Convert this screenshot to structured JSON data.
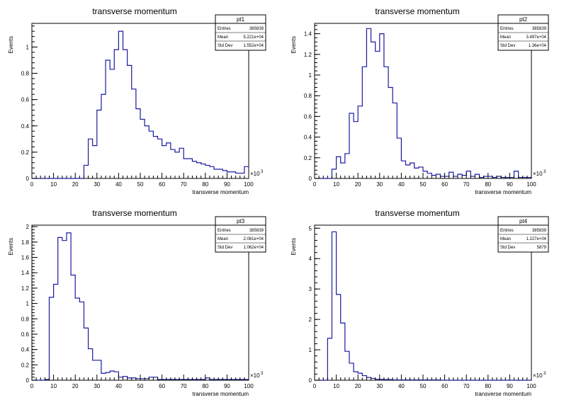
{
  "chart_data": [
    {
      "type": "histogram",
      "title": "transverse momentum",
      "xlabel": "transverse momentum",
      "ylabel": "Events",
      "x_exponent_label": "×10",
      "x_exponent_power": "3",
      "xlim": [
        0,
        100
      ],
      "ylim": [
        0,
        1.18
      ],
      "xticks": [
        0,
        10,
        20,
        30,
        40,
        50,
        60,
        70,
        80,
        90,
        100
      ],
      "yticks": [
        0,
        0.2,
        0.4,
        0.6,
        0.8,
        1
      ],
      "ytick_labels": [
        "0",
        "0.2",
        "0.4",
        "0.6",
        "0.8",
        "1"
      ],
      "bin_width": 2,
      "bins_start": 0,
      "values": [
        0,
        0,
        0,
        0,
        0,
        0,
        0,
        0,
        0,
        0,
        0,
        0,
        0.1,
        0.3,
        0.25,
        0.52,
        0.64,
        0.9,
        0.83,
        0.98,
        1.12,
        0.98,
        0.86,
        0.68,
        0.53,
        0.45,
        0.4,
        0.36,
        0.32,
        0.3,
        0.25,
        0.27,
        0.22,
        0.2,
        0.23,
        0.15,
        0.15,
        0.13,
        0.12,
        0.11,
        0.1,
        0.09,
        0.07,
        0.07,
        0.06,
        0.05,
        0.05,
        0.04,
        0.04,
        0.09
      ],
      "stats": {
        "name": "pt1",
        "rows": [
          {
            "label": "Entries",
            "value": "385839"
          },
          {
            "label": "Mean",
            "value": "5.221e+04"
          },
          {
            "label": "Std Dev",
            "value": "1.552e+04"
          }
        ]
      }
    },
    {
      "type": "histogram",
      "title": "transverse momentum",
      "xlabel": "transverse momentum",
      "ylabel": "Events",
      "x_exponent_label": "×10",
      "x_exponent_power": "3",
      "xlim": [
        0,
        100
      ],
      "ylim": [
        0,
        1.5
      ],
      "xticks": [
        0,
        10,
        20,
        30,
        40,
        50,
        60,
        70,
        80,
        90,
        100
      ],
      "yticks": [
        0,
        0.2,
        0.4,
        0.6,
        0.8,
        1,
        1.2,
        1.4
      ],
      "ytick_labels": [
        "0",
        "0.2",
        "0.4",
        "0.6",
        "0.8",
        "1",
        "1.2",
        "1.4"
      ],
      "bin_width": 2,
      "bins_start": 0,
      "values": [
        0,
        0,
        0,
        0,
        0.09,
        0.21,
        0.15,
        0.24,
        0.63,
        0.55,
        0.7,
        1.08,
        1.45,
        1.32,
        1.23,
        1.4,
        1.08,
        0.88,
        0.73,
        0.39,
        0.17,
        0.13,
        0.15,
        0.1,
        0.11,
        0.07,
        0.05,
        0.03,
        0.04,
        0.02,
        0.02,
        0.06,
        0.02,
        0.04,
        0.03,
        0.07,
        0.02,
        0.04,
        0.01,
        0.02,
        0.02,
        0.01,
        0.02,
        0.01,
        0.01,
        0.01,
        0.07,
        0.01,
        0.01,
        0.01
      ],
      "stats": {
        "name": "pt2",
        "rows": [
          {
            "label": "Entries",
            "value": "385839"
          },
          {
            "label": "Mean",
            "value": "3.497e+04"
          },
          {
            "label": "Std Dev",
            "value": "1.36e+04"
          }
        ]
      }
    },
    {
      "type": "histogram",
      "title": "transverse momentum",
      "xlabel": "transverse momentum",
      "ylabel": "Events",
      "x_exponent_label": "×10",
      "x_exponent_power": "3",
      "xlim": [
        0,
        100
      ],
      "ylim": [
        0,
        2.02
      ],
      "xticks": [
        0,
        10,
        20,
        30,
        40,
        50,
        60,
        70,
        80,
        90,
        100
      ],
      "yticks": [
        0,
        0.2,
        0.4,
        0.6,
        0.8,
        1,
        1.2,
        1.4,
        1.6,
        1.8,
        2
      ],
      "ytick_labels": [
        "0",
        "0.2",
        "0.4",
        "0.6",
        "0.8",
        "1",
        "1.2",
        "1.4",
        "1.6",
        "1.8",
        "2"
      ],
      "bin_width": 2,
      "bins_start": 0,
      "values": [
        0,
        0,
        0,
        0.01,
        1.08,
        1.25,
        1.86,
        1.82,
        1.92,
        1.37,
        1.07,
        1.02,
        0.68,
        0.41,
        0.26,
        0.26,
        0.09,
        0.1,
        0.12,
        0.11,
        0.04,
        0.05,
        0.03,
        0.03,
        0.02,
        0.02,
        0.02,
        0.04,
        0.04,
        0.01,
        0.01,
        0.01,
        0.01,
        0.01,
        0.01,
        0.01,
        0.01,
        0.01,
        0.01,
        0.01,
        0.03,
        0.01,
        0.01,
        0.01,
        0.01,
        0.01,
        0.01,
        0.01,
        0.01,
        0.01
      ],
      "stats": {
        "name": "pt3",
        "rows": [
          {
            "label": "Entries",
            "value": "385839"
          },
          {
            "label": "Mean",
            "value": "2.081e+04"
          },
          {
            "label": "Std Dev",
            "value": "1.062e+04"
          }
        ]
      }
    },
    {
      "type": "histogram",
      "title": "transverse momentum",
      "xlabel": "transverse momentum",
      "ylabel": "Events",
      "x_exponent_label": "×10",
      "x_exponent_power": "3",
      "xlim": [
        0,
        100
      ],
      "ylim": [
        0,
        5.1
      ],
      "xticks": [
        0,
        10,
        20,
        30,
        40,
        50,
        60,
        70,
        80,
        90,
        100
      ],
      "yticks": [
        0,
        1,
        2,
        3,
        4,
        5
      ],
      "ytick_labels": [
        "0",
        "1",
        "2",
        "3",
        "4",
        "5"
      ],
      "bin_width": 2,
      "bins_start": 0,
      "values": [
        0,
        0,
        0,
        1.38,
        4.88,
        2.82,
        1.88,
        0.95,
        0.56,
        0.28,
        0.23,
        0.15,
        0.09,
        0.06,
        0.03,
        0.03,
        0.02,
        0.02,
        0.01,
        0.01,
        0.01,
        0.01,
        0.01,
        0.01,
        0.01,
        0.01,
        0.01,
        0.01,
        0.01,
        0,
        0,
        0,
        0,
        0,
        0,
        0,
        0,
        0,
        0,
        0,
        0,
        0,
        0,
        0,
        0,
        0,
        0,
        0,
        0,
        0
      ],
      "stats": {
        "name": "pt4",
        "rows": [
          {
            "label": "Entries",
            "value": "385839"
          },
          {
            "label": "Mean",
            "value": "1.227e+04"
          },
          {
            "label": "Std Dev",
            "value": "5879"
          }
        ]
      }
    }
  ],
  "colors": {
    "histogram_line": "#1a1aa0",
    "axis": "#000000",
    "background": "#ffffff"
  }
}
